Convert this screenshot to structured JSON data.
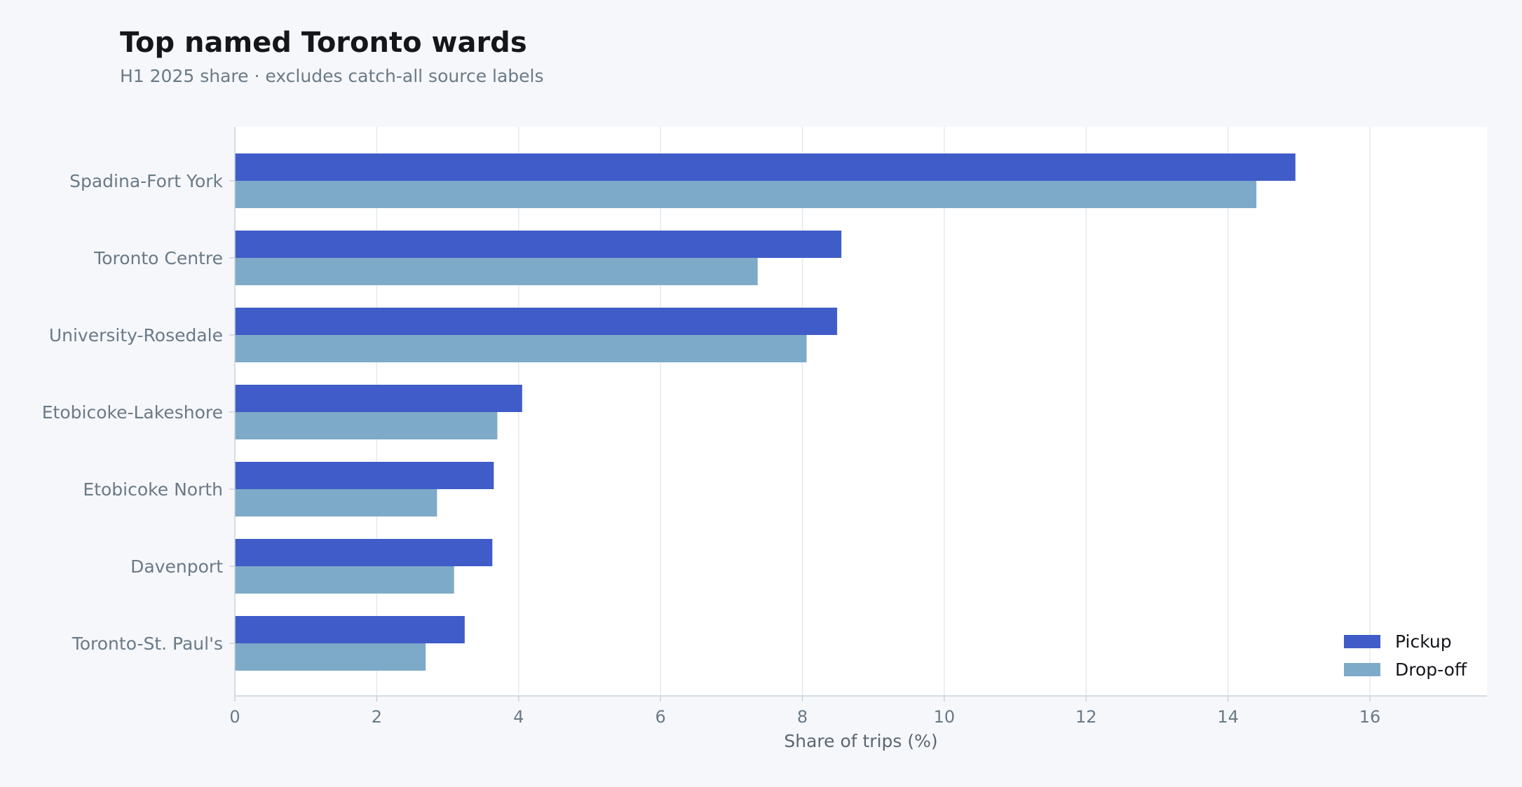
{
  "title": "Top named Toronto wards",
  "subtitle": "H1 2025 share · excludes catch-all source labels",
  "chart_data": {
    "type": "bar",
    "orientation": "horizontal",
    "categories": [
      "Spadina-Fort York",
      "Toronto Centre",
      "University-Rosedale",
      "Etobicoke-Lakeshore",
      "Etobicoke North",
      "Davenport",
      "Toronto-St. Paul's"
    ],
    "series": [
      {
        "name": "Pickup",
        "color": "#405cc8",
        "values": [
          14.95,
          8.55,
          8.49,
          4.05,
          3.65,
          3.63,
          3.24
        ]
      },
      {
        "name": "Drop-off",
        "color": "#7eaac9",
        "values": [
          14.4,
          7.37,
          8.06,
          3.7,
          2.85,
          3.09,
          2.69
        ]
      }
    ],
    "xlabel": "Share of trips (%)",
    "ylabel": "",
    "xlim": [
      0,
      17.65
    ],
    "xticks": [
      0,
      2,
      4,
      6,
      8,
      10,
      12,
      14,
      16
    ],
    "grid": true,
    "legend_position": "bottom-right"
  }
}
